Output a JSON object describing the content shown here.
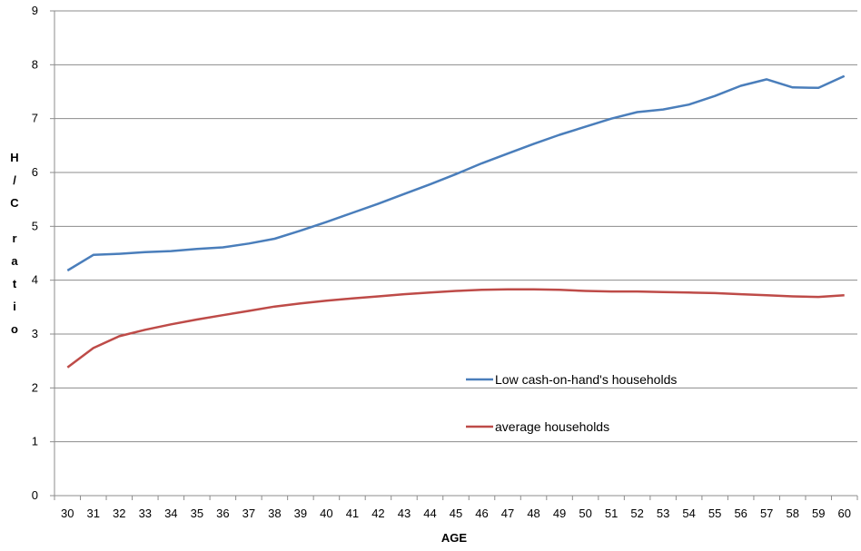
{
  "chart_data": {
    "type": "line",
    "title": "",
    "xlabel": "AGE",
    "ylabel": "H/C ratio",
    "ylim": [
      0,
      9
    ],
    "yticks": [
      "0",
      "1",
      "2",
      "3",
      "4",
      "5",
      "6",
      "7",
      "8",
      "9"
    ],
    "grid": "horizontal",
    "legend_position": "bottom-right inside plot",
    "categories": [
      "30",
      "31",
      "32",
      "33",
      "34",
      "35",
      "36",
      "37",
      "38",
      "39",
      "40",
      "41",
      "42",
      "43",
      "44",
      "45",
      "46",
      "47",
      "48",
      "49",
      "50",
      "51",
      "52",
      "53",
      "54",
      "55",
      "56",
      "57",
      "58",
      "59",
      "60"
    ],
    "series": [
      {
        "name": "Low cash-on-hand's households",
        "color": "#4a7ebb",
        "values": [
          4.18,
          4.47,
          4.49,
          4.52,
          4.54,
          4.58,
          4.61,
          4.68,
          4.77,
          4.92,
          5.08,
          5.25,
          5.42,
          5.6,
          5.78,
          5.97,
          6.17,
          6.35,
          6.53,
          6.7,
          6.85,
          7.0,
          7.12,
          7.17,
          7.26,
          7.42,
          7.61,
          7.73,
          7.58,
          7.57,
          7.79
        ]
      },
      {
        "name": "average households",
        "color": "#be4b48",
        "values": [
          2.38,
          2.74,
          2.96,
          3.08,
          3.18,
          3.27,
          3.35,
          3.43,
          3.51,
          3.57,
          3.62,
          3.66,
          3.7,
          3.74,
          3.77,
          3.8,
          3.82,
          3.83,
          3.83,
          3.82,
          3.8,
          3.79,
          3.79,
          3.78,
          3.77,
          3.76,
          3.74,
          3.72,
          3.7,
          3.69,
          3.72
        ]
      }
    ]
  }
}
